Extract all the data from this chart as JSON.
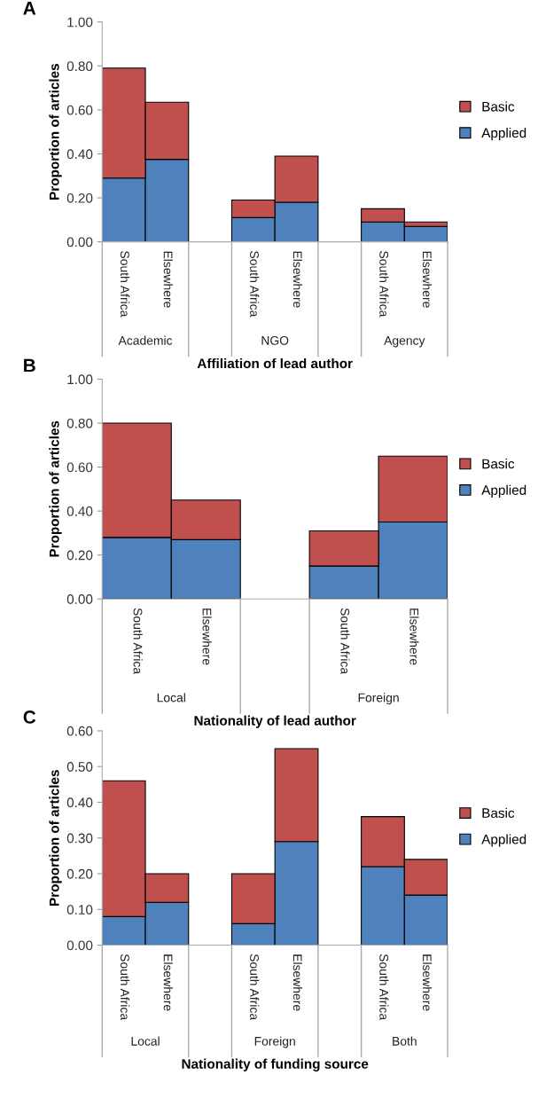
{
  "chart_data": [
    {
      "type": "bar",
      "title": "A",
      "xlabel": "Affiliation of lead author",
      "ylabel": "Proportion of articles",
      "stacked": true,
      "legend": "right",
      "grid": false,
      "categories": [
        "South Africa",
        "Elsewhere",
        null,
        "South Africa",
        "Elsewhere",
        null,
        "South Africa",
        "Elsewhere"
      ],
      "series": [
        {
          "name": "Applied",
          "color": "#4f81bd",
          "values": [
            0.29,
            0.375,
            null,
            0.11,
            0.18,
            null,
            0.09,
            0.07
          ]
        },
        {
          "name": "Basic",
          "color": "#c0504d",
          "values": [
            0.5,
            0.26,
            null,
            0.08,
            0.21,
            null,
            0.06,
            0.02
          ]
        }
      ],
      "ylim": [
        0,
        1
      ],
      "yticks": [
        {
          "value": 0,
          "label": "0.00"
        },
        {
          "value": 0.2,
          "label": "0.20"
        },
        {
          "value": 0.4,
          "label": "0.40"
        },
        {
          "value": 0.6,
          "label": "0.60"
        },
        {
          "value": 0.8,
          "label": "0.80"
        },
        {
          "value": 1,
          "label": "1.00"
        }
      ],
      "annotations": [
        "Academic",
        "NGO",
        "Agency"
      ]
    },
    {
      "type": "bar",
      "title": "B",
      "xlabel": "Nationality of lead author",
      "ylabel": "Proportion of articles",
      "stacked": true,
      "legend": "right",
      "grid": false,
      "categories": [
        "South Africa",
        "Elsewhere",
        null,
        "South Africa",
        "Elsewhere"
      ],
      "series": [
        {
          "name": "Applied",
          "color": "#4f81bd",
          "values": [
            0.28,
            0.27,
            null,
            0.15,
            0.35
          ]
        },
        {
          "name": "Basic",
          "color": "#c0504d",
          "values": [
            0.52,
            0.18,
            null,
            0.16,
            0.3
          ]
        }
      ],
      "ylim": [
        0,
        1
      ],
      "yticks": [
        {
          "value": 0,
          "label": "0.00"
        },
        {
          "value": 0.2,
          "label": "0.20"
        },
        {
          "value": 0.4,
          "label": "0.40"
        },
        {
          "value": 0.6,
          "label": "0.60"
        },
        {
          "value": 0.8,
          "label": "0.80"
        },
        {
          "value": 1,
          "label": "1.00"
        }
      ],
      "annotations": [
        "Local",
        "Foreign"
      ]
    },
    {
      "type": "bar",
      "title": "C",
      "xlabel": "Nationality of funding source",
      "ylabel": "Proportion of articles",
      "stacked": true,
      "legend": "right",
      "grid": false,
      "categories": [
        "South Africa",
        "Elsewhere",
        null,
        "South Africa",
        "Elsewhere",
        null,
        "South Africa",
        "Elsewhere"
      ],
      "series": [
        {
          "name": "Applied",
          "color": "#4f81bd",
          "values": [
            0.08,
            0.12,
            null,
            0.06,
            0.29,
            null,
            0.22,
            0.14
          ]
        },
        {
          "name": "Basic",
          "color": "#c0504d",
          "values": [
            0.38,
            0.08,
            null,
            0.14,
            0.26,
            null,
            0.14,
            0.1
          ]
        }
      ],
      "ylim": [
        0,
        0.6
      ],
      "yticks": [
        {
          "value": 0,
          "label": "0.00"
        },
        {
          "value": 0.1,
          "label": "0.10"
        },
        {
          "value": 0.2,
          "label": "0.20"
        },
        {
          "value": 0.3,
          "label": "0.30"
        },
        {
          "value": 0.4,
          "label": "0.40"
        },
        {
          "value": 0.5,
          "label": "0.50"
        },
        {
          "value": 0.6,
          "label": "0.60"
        }
      ],
      "annotations": [
        "Local",
        "Foreign",
        "Both"
      ]
    }
  ]
}
